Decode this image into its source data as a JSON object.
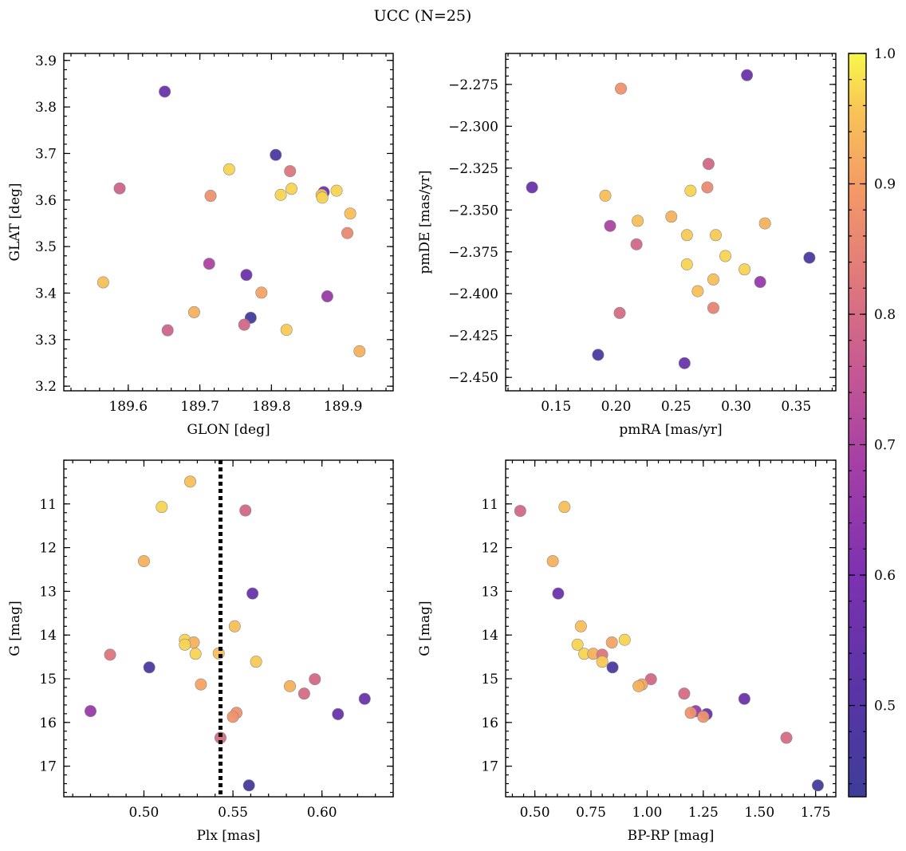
{
  "figure": {
    "title": "UCC (N=25)"
  },
  "colorbar": {
    "range": [
      0.43,
      1.0
    ],
    "ticks": [
      "0.5",
      "0.6",
      "0.7",
      "0.8",
      "0.9",
      "1.0"
    ],
    "tick_values": [
      0.5,
      0.6,
      0.7,
      0.8,
      0.9,
      1.0
    ],
    "colormap": "plasma"
  },
  "chart_data": [
    {
      "type": "scatter",
      "xlabel": "GLON [deg]",
      "ylabel": "GLAT [deg]",
      "xlim": [
        189.51,
        189.97
      ],
      "ylim": [
        3.19,
        3.915
      ],
      "xticks": [
        189.6,
        189.7,
        189.8,
        189.9
      ],
      "xtick_labels": [
        "189.6",
        "189.7",
        "189.8",
        "189.9"
      ],
      "yticks": [
        3.2,
        3.3,
        3.4,
        3.5,
        3.6,
        3.7,
        3.8,
        3.9
      ],
      "ytick_labels": [
        "3.2",
        "3.3",
        "3.4",
        "3.5",
        "3.6",
        "3.7",
        "3.8",
        "3.9"
      ],
      "invert_y": false,
      "vline": null,
      "points": [
        {
          "x": 189.651,
          "y": 3.833,
          "c": 0.55
        },
        {
          "x": 189.806,
          "y": 3.697,
          "c": 0.47
        },
        {
          "x": 189.741,
          "y": 3.666,
          "c": 0.97
        },
        {
          "x": 189.826,
          "y": 3.662,
          "c": 0.82
        },
        {
          "x": 189.588,
          "y": 3.625,
          "c": 0.78
        },
        {
          "x": 189.828,
          "y": 3.624,
          "c": 0.97
        },
        {
          "x": 189.891,
          "y": 3.62,
          "c": 0.97
        },
        {
          "x": 189.873,
          "y": 3.617,
          "c": 0.55
        },
        {
          "x": 189.813,
          "y": 3.611,
          "c": 0.97
        },
        {
          "x": 189.87,
          "y": 3.611,
          "c": 0.95
        },
        {
          "x": 189.715,
          "y": 3.609,
          "c": 0.88
        },
        {
          "x": 189.871,
          "y": 3.605,
          "c": 0.97
        },
        {
          "x": 189.91,
          "y": 3.571,
          "c": 0.95
        },
        {
          "x": 189.906,
          "y": 3.529,
          "c": 0.86
        },
        {
          "x": 189.713,
          "y": 3.463,
          "c": 0.7
        },
        {
          "x": 189.765,
          "y": 3.439,
          "c": 0.56
        },
        {
          "x": 189.565,
          "y": 3.423,
          "c": 0.95
        },
        {
          "x": 189.786,
          "y": 3.401,
          "c": 0.91
        },
        {
          "x": 189.878,
          "y": 3.393,
          "c": 0.66
        },
        {
          "x": 189.692,
          "y": 3.359,
          "c": 0.93
        },
        {
          "x": 189.771,
          "y": 3.347,
          "c": 0.45
        },
        {
          "x": 189.762,
          "y": 3.332,
          "c": 0.79
        },
        {
          "x": 189.655,
          "y": 3.32,
          "c": 0.78
        },
        {
          "x": 189.821,
          "y": 3.321,
          "c": 0.96
        },
        {
          "x": 189.923,
          "y": 3.275,
          "c": 0.93
        }
      ]
    },
    {
      "type": "scatter",
      "xlabel": "pmRA [mas/yr]",
      "ylabel": "pmDE [mas/yr]",
      "xlim": [
        0.108,
        0.383
      ],
      "ylim": [
        -2.458,
        -2.2565
      ],
      "xticks": [
        0.15,
        0.2,
        0.25,
        0.3,
        0.35
      ],
      "xtick_labels": [
        "0.15",
        "0.20",
        "0.25",
        "0.30",
        "0.35"
      ],
      "yticks": [
        -2.45,
        -2.425,
        -2.4,
        -2.375,
        -2.35,
        -2.325,
        -2.3,
        -2.275
      ],
      "ytick_labels": [
        "−2.450",
        "−2.425",
        "−2.400",
        "−2.375",
        "−2.350",
        "−2.325",
        "−2.300",
        "−2.275"
      ],
      "invert_y": false,
      "vline": null,
      "points": [
        {
          "x": 0.309,
          "y": -2.2695,
          "c": 0.55
        },
        {
          "x": 0.204,
          "y": -2.2775,
          "c": 0.88
        },
        {
          "x": 0.13,
          "y": -2.3365,
          "c": 0.55
        },
        {
          "x": 0.277,
          "y": -2.3225,
          "c": 0.79
        },
        {
          "x": 0.276,
          "y": -2.3365,
          "c": 0.86
        },
        {
          "x": 0.262,
          "y": -2.3385,
          "c": 0.97
        },
        {
          "x": 0.191,
          "y": -2.3415,
          "c": 0.95
        },
        {
          "x": 0.246,
          "y": -2.354,
          "c": 0.93
        },
        {
          "x": 0.218,
          "y": -2.3565,
          "c": 0.95
        },
        {
          "x": 0.324,
          "y": -2.358,
          "c": 0.93
        },
        {
          "x": 0.195,
          "y": -2.3595,
          "c": 0.7
        },
        {
          "x": 0.259,
          "y": -2.365,
          "c": 0.96
        },
        {
          "x": 0.283,
          "y": -2.365,
          "c": 0.96
        },
        {
          "x": 0.217,
          "y": -2.3705,
          "c": 0.79
        },
        {
          "x": 0.291,
          "y": -2.3775,
          "c": 0.97
        },
        {
          "x": 0.361,
          "y": -2.3785,
          "c": 0.47
        },
        {
          "x": 0.259,
          "y": -2.3825,
          "c": 0.97
        },
        {
          "x": 0.307,
          "y": -2.3855,
          "c": 0.97
        },
        {
          "x": 0.281,
          "y": -2.3915,
          "c": 0.95
        },
        {
          "x": 0.32,
          "y": -2.393,
          "c": 0.66
        },
        {
          "x": 0.268,
          "y": -2.3985,
          "c": 0.95
        },
        {
          "x": 0.281,
          "y": -2.4085,
          "c": 0.85
        },
        {
          "x": 0.203,
          "y": -2.4115,
          "c": 0.8
        },
        {
          "x": 0.185,
          "y": -2.4365,
          "c": 0.47
        },
        {
          "x": 0.257,
          "y": -2.4415,
          "c": 0.55
        }
      ]
    },
    {
      "type": "scatter",
      "xlabel": "Plx [mas]",
      "ylabel": "G [mag]",
      "xlim": [
        0.455,
        0.64
      ],
      "ylim": [
        10.0,
        17.7
      ],
      "xticks": [
        0.5,
        0.55,
        0.6
      ],
      "xtick_labels": [
        "0.50",
        "0.55",
        "0.60"
      ],
      "yticks": [
        11,
        12,
        13,
        14,
        15,
        16,
        17
      ],
      "ytick_labels": [
        "11",
        "12",
        "13",
        "14",
        "15",
        "16",
        "17"
      ],
      "invert_y": true,
      "vline": 0.543,
      "points": [
        {
          "x": 0.526,
          "y": 10.49,
          "c": 0.95
        },
        {
          "x": 0.51,
          "y": 11.07,
          "c": 0.97
        },
        {
          "x": 0.557,
          "y": 11.15,
          "c": 0.79
        },
        {
          "x": 0.5,
          "y": 12.31,
          "c": 0.93
        },
        {
          "x": 0.561,
          "y": 13.05,
          "c": 0.55
        },
        {
          "x": 0.551,
          "y": 13.8,
          "c": 0.95
        },
        {
          "x": 0.523,
          "y": 14.11,
          "c": 0.97
        },
        {
          "x": 0.528,
          "y": 14.17,
          "c": 0.93
        },
        {
          "x": 0.523,
          "y": 14.22,
          "c": 0.97
        },
        {
          "x": 0.529,
          "y": 14.43,
          "c": 0.97
        },
        {
          "x": 0.542,
          "y": 14.42,
          "c": 0.95
        },
        {
          "x": 0.481,
          "y": 14.45,
          "c": 0.82
        },
        {
          "x": 0.563,
          "y": 14.61,
          "c": 0.96
        },
        {
          "x": 0.503,
          "y": 14.74,
          "c": 0.47
        },
        {
          "x": 0.596,
          "y": 15.01,
          "c": 0.79
        },
        {
          "x": 0.532,
          "y": 15.13,
          "c": 0.91
        },
        {
          "x": 0.582,
          "y": 15.17,
          "c": 0.93
        },
        {
          "x": 0.59,
          "y": 15.34,
          "c": 0.8
        },
        {
          "x": 0.624,
          "y": 15.46,
          "c": 0.55
        },
        {
          "x": 0.47,
          "y": 15.74,
          "c": 0.66
        },
        {
          "x": 0.552,
          "y": 15.78,
          "c": 0.88
        },
        {
          "x": 0.609,
          "y": 15.81,
          "c": 0.55
        },
        {
          "x": 0.55,
          "y": 15.87,
          "c": 0.88
        },
        {
          "x": 0.543,
          "y": 16.35,
          "c": 0.8
        },
        {
          "x": 0.559,
          "y": 17.44,
          "c": 0.45
        }
      ]
    },
    {
      "type": "scatter",
      "xlabel": "BP-RP [mag]",
      "ylabel": "G [mag]",
      "xlim": [
        0.37,
        1.84
      ],
      "ylim": [
        10.0,
        17.7
      ],
      "xticks": [
        0.5,
        0.75,
        1.0,
        1.25,
        1.5,
        1.75
      ],
      "xtick_labels": [
        "0.50",
        "0.75",
        "1.00",
        "1.25",
        "1.50",
        "1.75"
      ],
      "yticks": [
        11,
        12,
        13,
        14,
        15,
        16,
        17
      ],
      "ytick_labels": [
        "11",
        "12",
        "13",
        "14",
        "15",
        "16",
        "17"
      ],
      "invert_y": true,
      "vline": null,
      "points": [
        {
          "x": 0.435,
          "y": 11.16,
          "c": 0.79
        },
        {
          "x": 0.632,
          "y": 11.07,
          "c": 0.95
        },
        {
          "x": 0.58,
          "y": 12.31,
          "c": 0.93
        },
        {
          "x": 0.604,
          "y": 13.05,
          "c": 0.55
        },
        {
          "x": 0.705,
          "y": 13.8,
          "c": 0.95
        },
        {
          "x": 0.9,
          "y": 14.11,
          "c": 0.97
        },
        {
          "x": 0.843,
          "y": 14.17,
          "c": 0.91
        },
        {
          "x": 0.69,
          "y": 14.22,
          "c": 0.97
        },
        {
          "x": 0.72,
          "y": 14.43,
          "c": 0.97
        },
        {
          "x": 0.76,
          "y": 14.43,
          "c": 0.93
        },
        {
          "x": 0.8,
          "y": 14.45,
          "c": 0.82
        },
        {
          "x": 0.8,
          "y": 14.61,
          "c": 0.96
        },
        {
          "x": 0.846,
          "y": 14.74,
          "c": 0.47
        },
        {
          "x": 1.017,
          "y": 15.01,
          "c": 0.79
        },
        {
          "x": 0.977,
          "y": 15.13,
          "c": 0.91
        },
        {
          "x": 0.962,
          "y": 15.17,
          "c": 0.93
        },
        {
          "x": 1.165,
          "y": 15.34,
          "c": 0.8
        },
        {
          "x": 1.433,
          "y": 15.46,
          "c": 0.55
        },
        {
          "x": 1.216,
          "y": 15.74,
          "c": 0.66
        },
        {
          "x": 1.194,
          "y": 15.78,
          "c": 0.88
        },
        {
          "x": 1.265,
          "y": 15.81,
          "c": 0.55
        },
        {
          "x": 1.25,
          "y": 15.87,
          "c": 0.88
        },
        {
          "x": 1.62,
          "y": 16.35,
          "c": 0.8
        },
        {
          "x": 1.76,
          "y": 17.44,
          "c": 0.45
        }
      ]
    }
  ]
}
